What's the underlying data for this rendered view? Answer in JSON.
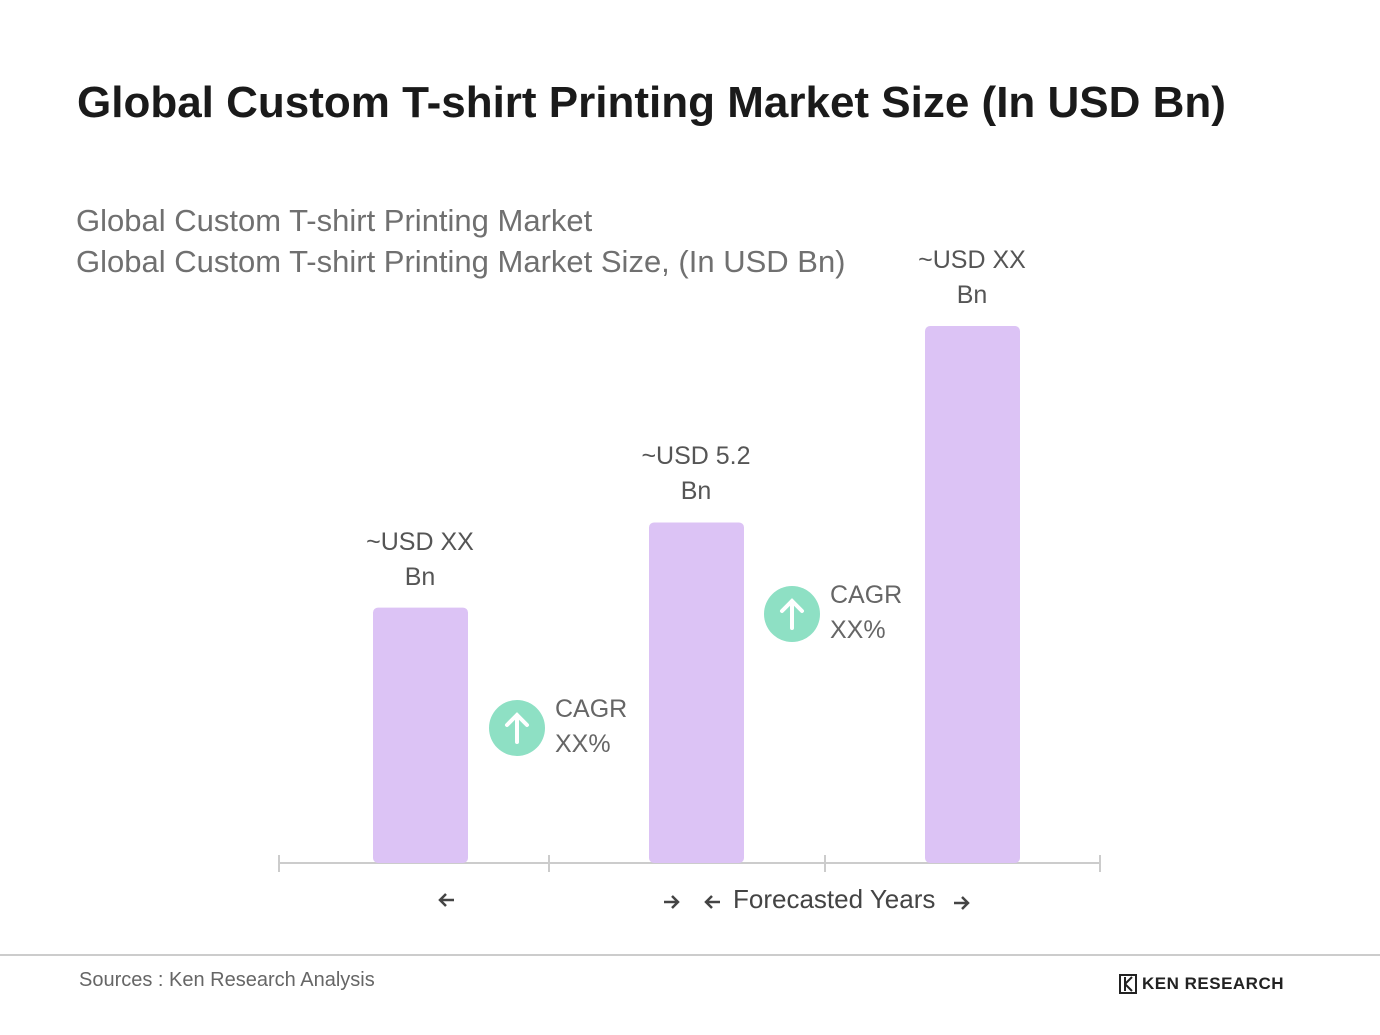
{
  "chart_data": {
    "type": "bar",
    "title": "Global Custom T-shirt Printing Market Size (In USD Bn)",
    "subtitle": "Global Custom T-shirt Printing Market",
    "chart_label": "Global Custom T-shirt Printing Market Size, (In USD Bn)",
    "categories": [
      null,
      null,
      null
    ],
    "values": [
      3.9,
      5.2,
      8.2
    ],
    "value_labels": [
      "~USD XX Bn",
      "~USD 5.2 Bn",
      "~USD XX Bn"
    ],
    "color": "#dcc3f5",
    "cagr_labels": [
      "CAGR XX%",
      "CAGR XX%"
    ],
    "x_annotation": "Forecasted Years",
    "source": "Sources : Ken Research Analysis",
    "brand": "KEN RESEARCH"
  }
}
